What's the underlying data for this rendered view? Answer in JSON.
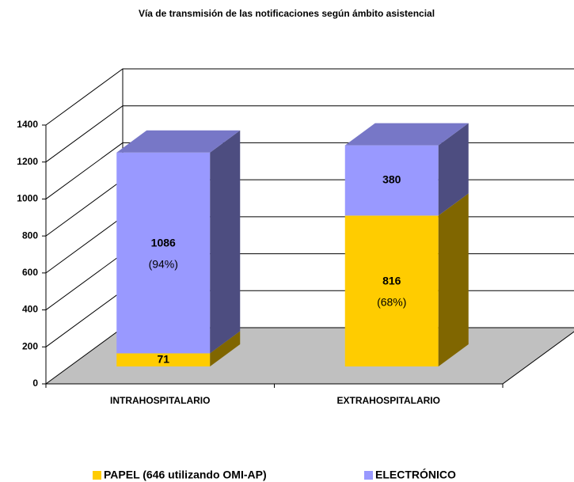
{
  "chart_data": {
    "type": "bar3d_stacked",
    "title": "Vía de transmisión de las notificaciones según ámbito asistencial",
    "categories": [
      "INTRAHOSPITALARIO",
      "EXTRAHOSPITALARIO"
    ],
    "series": [
      {
        "name": "PAPEL (646 utilizando OMI-AP)",
        "color": "#ffcc00",
        "values": [
          71,
          816
        ],
        "percent_labels": [
          null,
          "(68%)"
        ]
      },
      {
        "name": "ELECTRÓNICO",
        "color": "#9999ff",
        "values": [
          1086,
          380
        ],
        "percent_labels": [
          "(94%)",
          null
        ]
      }
    ],
    "ylim": [
      0,
      1400
    ],
    "yticks": [
      0,
      200,
      400,
      600,
      800,
      1000,
      1200,
      1400
    ],
    "grid": true,
    "legend": "bottom"
  }
}
